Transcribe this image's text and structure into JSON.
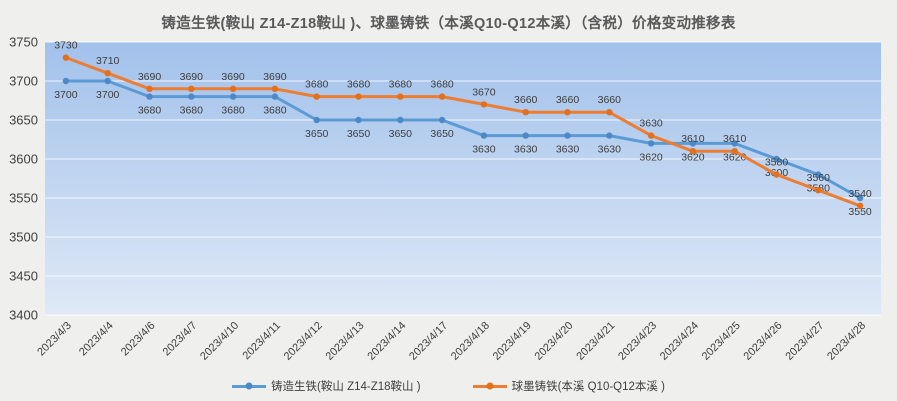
{
  "chart_data": {
    "type": "line",
    "title": "铸造生铁(鞍山 Z14-Z18鞍山 )、球墨铸铁（本溪Q10-Q12本溪）（含税）价格变动推移表",
    "categories": [
      "2023/4/3",
      "2023/4/4",
      "2023/4/6",
      "2023/4/7",
      "2023/4/10",
      "2023/4/11",
      "2023/4/12",
      "2023/4/13",
      "2023/4/14",
      "2023/4/17",
      "2023/4/18",
      "2023/4/19",
      "2023/4/20",
      "2023/4/21",
      "2023/4/23",
      "2023/4/24",
      "2023/4/25",
      "2023/4/26",
      "2023/4/27",
      "2023/4/28"
    ],
    "series": [
      {
        "name": "铸造生铁(鞍山 Z14-Z18鞍山 )",
        "color": "#5b9bd5",
        "marker_color": "#4d88c7",
        "label_position": "below",
        "values": [
          3700,
          3700,
          3680,
          3680,
          3680,
          3680,
          3650,
          3650,
          3650,
          3650,
          3630,
          3630,
          3630,
          3630,
          3620,
          3620,
          3620,
          3600,
          3580,
          3550
        ]
      },
      {
        "name": "球墨铸铁(本溪 Q10-Q12本溪 )",
        "color": "#ed7d31",
        "marker_color": "#e2701c",
        "label_position": "above",
        "values": [
          3730,
          3710,
          3690,
          3690,
          3690,
          3690,
          3680,
          3680,
          3680,
          3680,
          3670,
          3660,
          3660,
          3660,
          3630,
          3610,
          3610,
          3580,
          3560,
          3540
        ]
      }
    ],
    "ylim": [
      3400,
      3750
    ],
    "yticks": [
      3750,
      3700,
      3650,
      3600,
      3550,
      3500,
      3450,
      3400
    ],
    "grid": true,
    "legend_position": "bottom",
    "xlabel": "",
    "ylabel": ""
  },
  "colors": {
    "background": "#efefee",
    "plot_gradient_top": "#a2c1eb",
    "plot_gradient_bottom": "#dfe9f6",
    "gridline": "#ffffff",
    "axis_text": "#3f3f3f",
    "data_label_text": "#3d3d3d",
    "title_text": "#595959"
  }
}
